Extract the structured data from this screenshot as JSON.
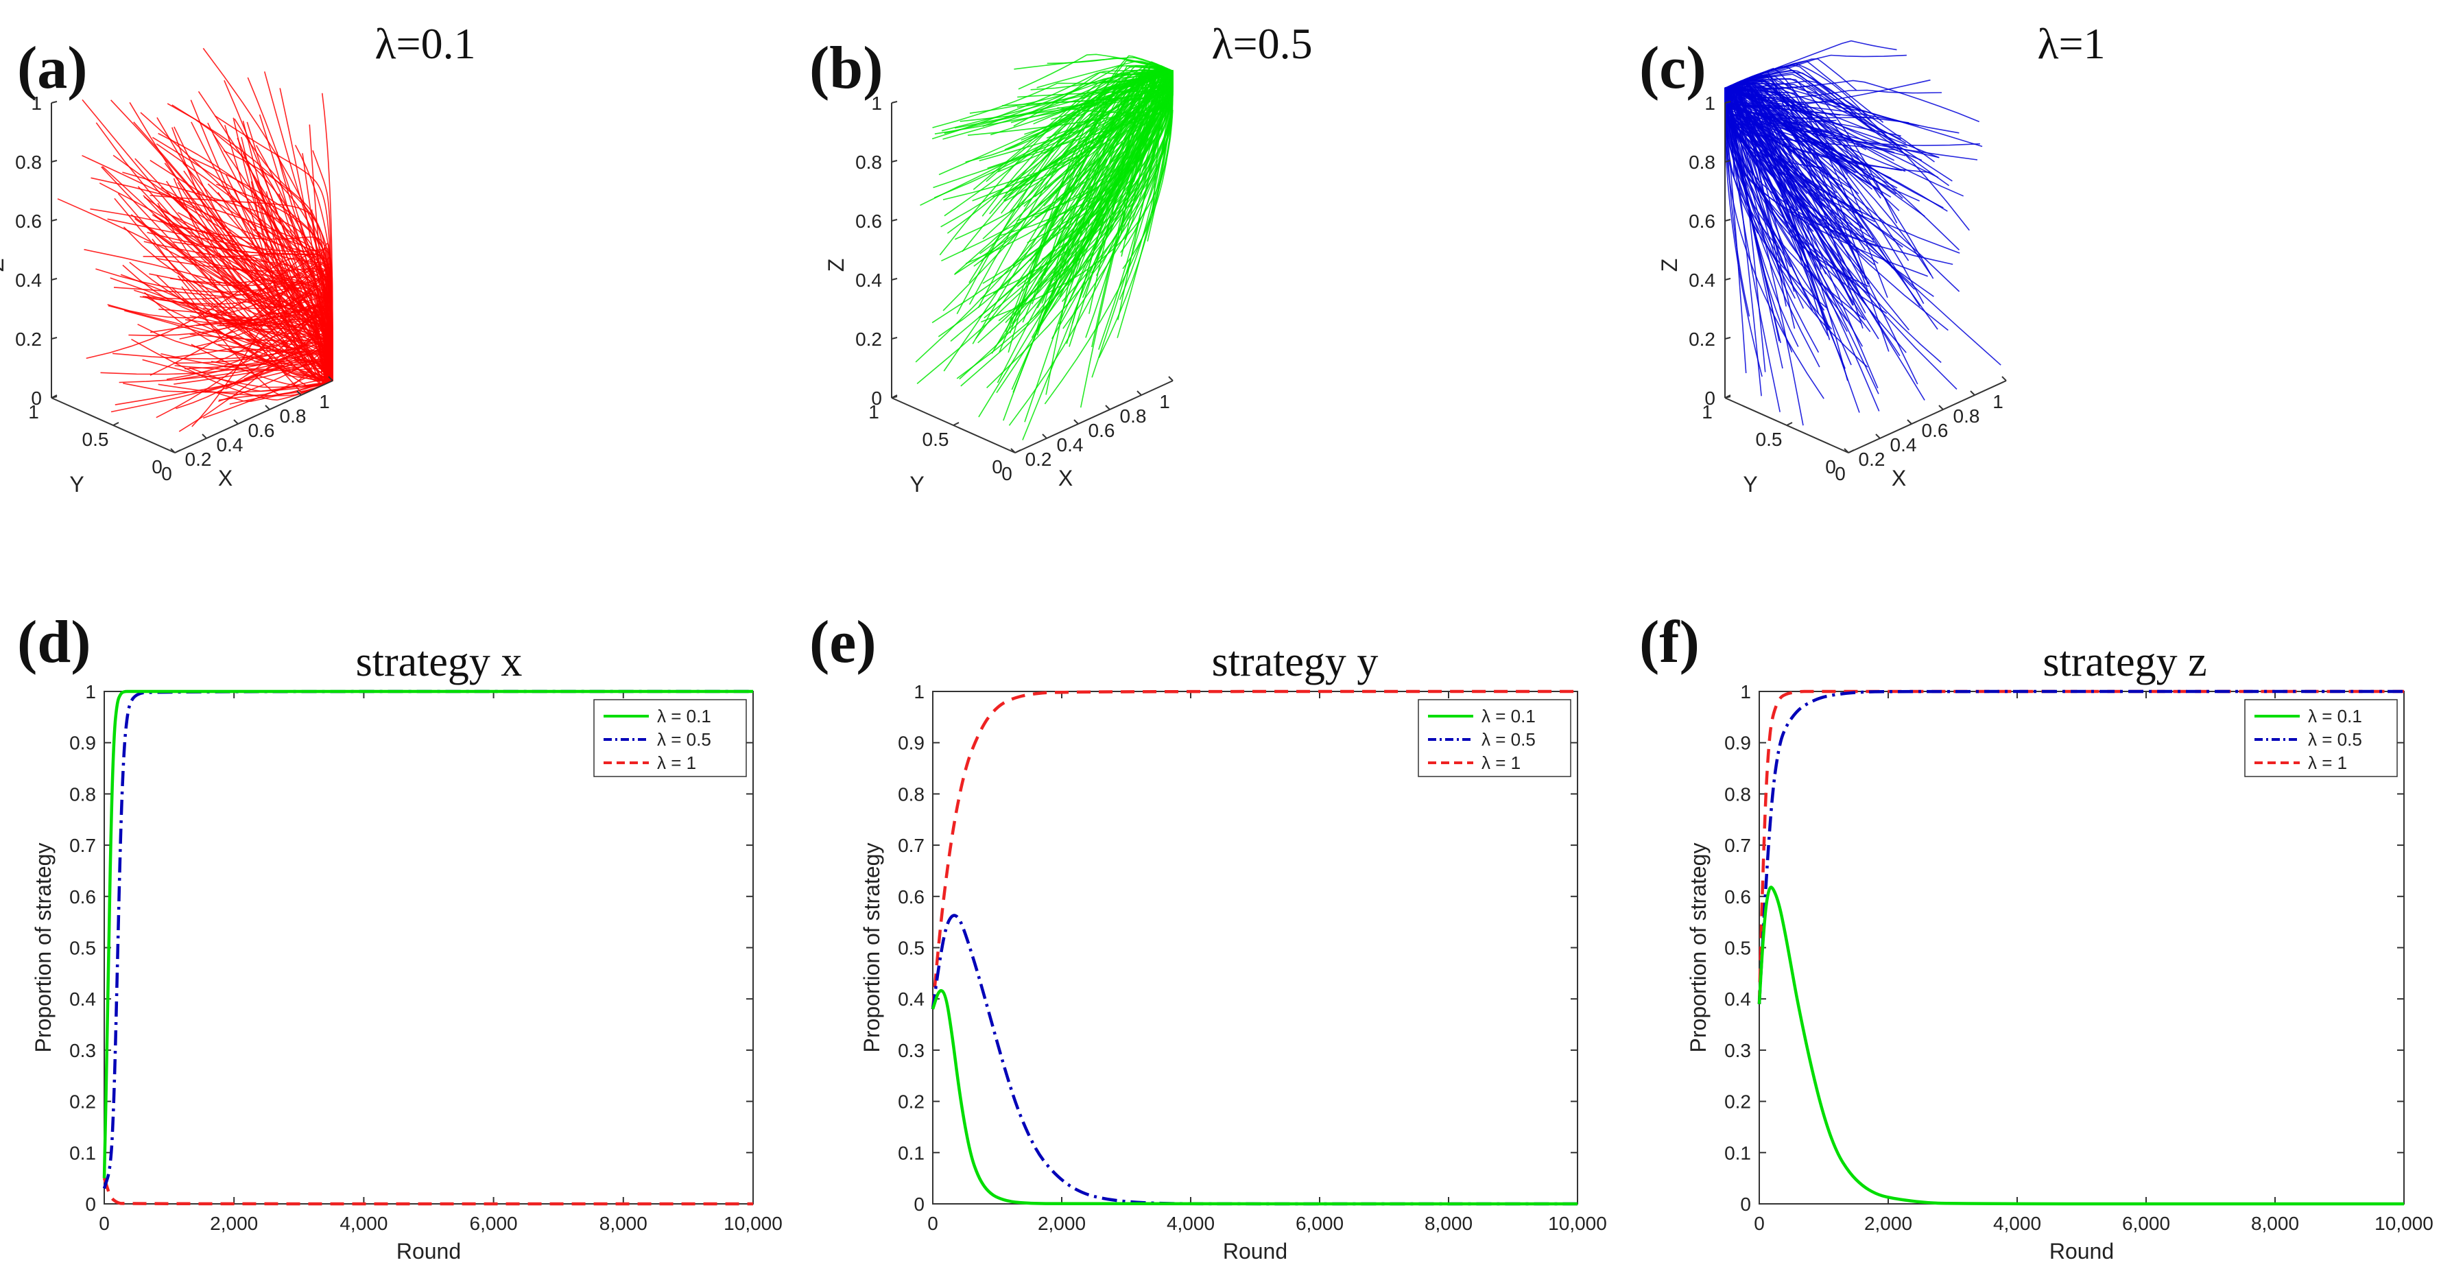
{
  "colors": {
    "red": "#ff0000",
    "green": "#00e600",
    "blue": "#0000d8",
    "green_line": "#00dd00",
    "blue_line": "#0000b8",
    "red_line": "#ee2222"
  },
  "chart_data": [
    {
      "letter": "(a)",
      "type": "3d-trajectories",
      "title": "λ=0.1",
      "color": "#ff0000",
      "xlabel": "X",
      "ylabel": "Y",
      "zlabel": "Z",
      "x_ticks": [
        "0",
        "0.2",
        "0.4",
        "0.6",
        "0.8",
        "1"
      ],
      "y_ticks": [
        "0",
        "0.5",
        "1"
      ],
      "z_ticks": [
        "0",
        "0.2",
        "0.4",
        "0.6",
        "0.8",
        "1"
      ],
      "converges_to": {
        "x": 1,
        "y": 0,
        "z": 0
      }
    },
    {
      "letter": "(b)",
      "type": "3d-trajectories",
      "title": "λ=0.5",
      "color": "#00e600",
      "xlabel": "X",
      "ylabel": "Y",
      "zlabel": "Z",
      "x_ticks": [
        "0",
        "0.2",
        "0.4",
        "0.6",
        "0.8",
        "1"
      ],
      "y_ticks": [
        "0",
        "0.5",
        "1"
      ],
      "z_ticks": [
        "0",
        "0.2",
        "0.4",
        "0.6",
        "0.8",
        "1"
      ],
      "converges_to": {
        "x": 1,
        "y": 0,
        "z": 1
      }
    },
    {
      "letter": "(c)",
      "type": "3d-trajectories",
      "title": "λ=1",
      "color": "#0000d8",
      "xlabel": "X",
      "ylabel": "Y",
      "zlabel": "Z",
      "x_ticks": [
        "0",
        "0.2",
        "0.4",
        "0.6",
        "0.8",
        "1"
      ],
      "y_ticks": [
        "0",
        "0.5",
        "1"
      ],
      "z_ticks": [
        "0",
        "0.2",
        "0.4",
        "0.6",
        "0.8",
        "1"
      ],
      "converges_to": {
        "x": 0,
        "y": 1,
        "z": 1
      }
    },
    {
      "letter": "(d)",
      "type": "line",
      "title": "strategy x",
      "xlabel": "Round",
      "ylabel": "Proportion of strategy",
      "xlim": [
        0,
        10000
      ],
      "ylim": [
        0,
        1
      ],
      "x_ticks": [
        "0",
        "2,000",
        "4,000",
        "6,000",
        "8,000",
        "10,000"
      ],
      "y_ticks": [
        "0",
        "0.1",
        "0.2",
        "0.3",
        "0.4",
        "0.5",
        "0.6",
        "0.7",
        "0.8",
        "0.9",
        "1"
      ],
      "legend_position": "top-right",
      "series": [
        {
          "name": "λ = 0.1",
          "style": "solid",
          "color": "#00dd00",
          "x": [
            0,
            50,
            100,
            150,
            200,
            250,
            300,
            400,
            600,
            10000
          ],
          "y": [
            0.05,
            0.35,
            0.72,
            0.92,
            0.98,
            0.995,
            1,
            1,
            1,
            1
          ]
        },
        {
          "name": "λ = 0.5",
          "style": "dashdot",
          "color": "#0000b8",
          "x": [
            0,
            100,
            150,
            200,
            250,
            300,
            350,
            400,
            500,
            700,
            10000
          ],
          "y": [
            0.03,
            0.07,
            0.2,
            0.45,
            0.72,
            0.88,
            0.95,
            0.98,
            0.995,
            1,
            1
          ]
        },
        {
          "name": "λ = 1",
          "style": "dashed",
          "color": "#ee2222",
          "x": [
            0,
            50,
            100,
            200,
            300,
            10000
          ],
          "y": [
            0.05,
            0.03,
            0.012,
            0.002,
            0,
            0
          ]
        }
      ]
    },
    {
      "letter": "(e)",
      "type": "line",
      "title": "strategy y",
      "xlabel": "Round",
      "ylabel": "Proportion of strategy",
      "xlim": [
        0,
        10000
      ],
      "ylim": [
        0,
        1
      ],
      "x_ticks": [
        "0",
        "2,000",
        "4,000",
        "6,000",
        "8,000",
        "10,000"
      ],
      "y_ticks": [
        "0",
        "0.1",
        "0.2",
        "0.3",
        "0.4",
        "0.5",
        "0.6",
        "0.7",
        "0.8",
        "0.9",
        "1"
      ],
      "legend_position": "top-right",
      "series": [
        {
          "name": "λ = 0.1",
          "style": "solid",
          "color": "#00dd00",
          "x": [
            0,
            100,
            200,
            300,
            400,
            500,
            600,
            700,
            800,
            900,
            1000,
            1200,
            1500,
            2000,
            10000
          ],
          "y": [
            0.38,
            0.42,
            0.41,
            0.33,
            0.23,
            0.15,
            0.09,
            0.055,
            0.033,
            0.02,
            0.012,
            0.004,
            0.001,
            0,
            0
          ]
        },
        {
          "name": "λ = 0.5",
          "style": "dashdot",
          "color": "#0000b8",
          "x": [
            0,
            100,
            200,
            300,
            400,
            500,
            700,
            900,
            1100,
            1300,
            1500,
            1700,
            2000,
            2300,
            2600,
            3000,
            3500,
            4000,
            10000
          ],
          "y": [
            0.38,
            0.47,
            0.54,
            0.565,
            0.56,
            0.53,
            0.45,
            0.36,
            0.27,
            0.19,
            0.13,
            0.085,
            0.045,
            0.022,
            0.011,
            0.004,
            0.001,
            0,
            0
          ]
        },
        {
          "name": "λ = 1",
          "style": "dashed",
          "color": "#ee2222",
          "x": [
            0,
            100,
            200,
            300,
            400,
            500,
            600,
            800,
            1000,
            1200,
            1500,
            2000,
            10000
          ],
          "y": [
            0.38,
            0.52,
            0.63,
            0.72,
            0.79,
            0.845,
            0.885,
            0.94,
            0.97,
            0.985,
            0.995,
            1,
            1
          ]
        }
      ]
    },
    {
      "letter": "(f)",
      "type": "line",
      "title": "strategy z",
      "xlabel": "Round",
      "ylabel": "Proportion of strategy",
      "xlim": [
        0,
        10000
      ],
      "ylim": [
        0,
        1
      ],
      "x_ticks": [
        "0",
        "2,000",
        "4,000",
        "6,000",
        "8,000",
        "10,000"
      ],
      "y_ticks": [
        "0",
        "0.1",
        "0.2",
        "0.3",
        "0.4",
        "0.5",
        "0.6",
        "0.7",
        "0.8",
        "0.9",
        "1"
      ],
      "legend_position": "top-right",
      "series": [
        {
          "name": "λ = 0.1",
          "style": "solid",
          "color": "#00dd00",
          "x": [
            0,
            50,
            100,
            150,
            200,
            300,
            400,
            500,
            600,
            800,
            1000,
            1200,
            1400,
            1600,
            1800,
            2000,
            2500,
            3000,
            10000
          ],
          "y": [
            0.39,
            0.5,
            0.58,
            0.615,
            0.62,
            0.59,
            0.53,
            0.46,
            0.39,
            0.27,
            0.17,
            0.1,
            0.06,
            0.035,
            0.02,
            0.012,
            0.003,
            0,
            0
          ]
        },
        {
          "name": "λ = 0.5",
          "style": "dashdot",
          "color": "#0000b8",
          "x": [
            0,
            100,
            200,
            300,
            400,
            600,
            800,
            1000,
            1300,
            1600,
            2000,
            10000
          ],
          "y": [
            0.39,
            0.62,
            0.8,
            0.89,
            0.93,
            0.965,
            0.98,
            0.99,
            0.996,
            0.999,
            1,
            1
          ]
        },
        {
          "name": "λ = 1",
          "style": "dashed",
          "color": "#ee2222",
          "x": [
            0,
            50,
            100,
            150,
            200,
            300,
            400,
            600,
            800,
            10000
          ],
          "y": [
            0.39,
            0.62,
            0.8,
            0.9,
            0.95,
            0.985,
            0.995,
            1,
            1,
            1
          ]
        }
      ]
    }
  ]
}
